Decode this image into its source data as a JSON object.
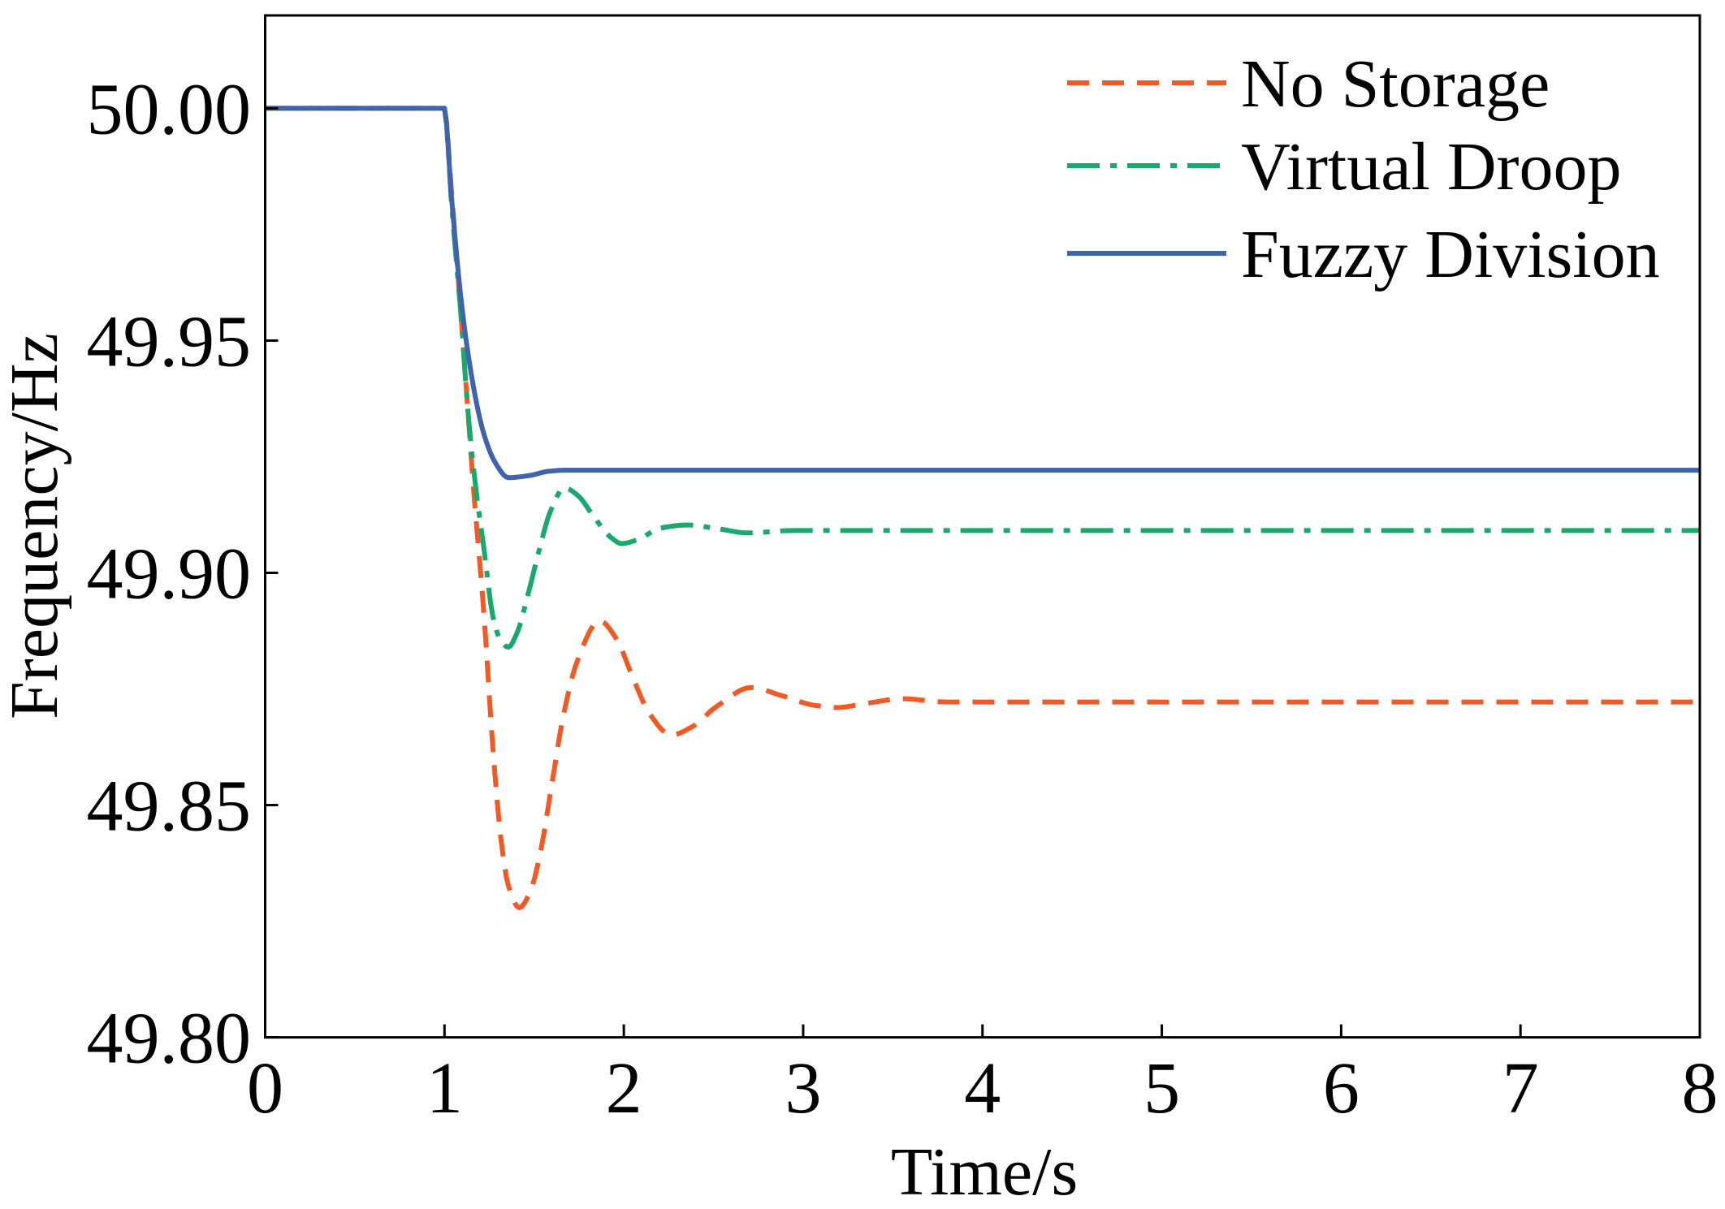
{
  "chart_data": {
    "type": "line",
    "xlabel": "Time/s",
    "ylabel": "Frequency/Hz",
    "xlim": [
      0,
      8
    ],
    "ylim": [
      49.8,
      50.02
    ],
    "xticks": [
      0,
      1,
      2,
      3,
      4,
      5,
      6,
      7,
      8
    ],
    "xtick_labels": [
      "0",
      "1",
      "2",
      "3",
      "4",
      "5",
      "6",
      "7",
      "8"
    ],
    "yticks": [
      49.8,
      49.85,
      49.9,
      49.95,
      50.0
    ],
    "ytick_labels": [
      "49.80",
      "49.85",
      "49.90",
      "49.95",
      "50.00"
    ],
    "grid": false,
    "legend": "top-right",
    "series": [
      {
        "name": "No Storage",
        "color": "#f15a24",
        "dash": "dashed",
        "x": [
          0,
          1.0,
          1.037,
          1.098,
          1.129,
          1.16,
          1.221,
          1.27,
          1.313,
          1.356,
          1.417,
          1.479,
          1.54,
          1.601,
          1.663,
          1.742,
          1.865,
          1.957,
          2.049,
          2.141,
          2.264,
          2.387,
          2.509,
          2.712,
          2.877,
          3.061,
          3.184,
          3.368,
          3.552,
          3.798,
          8
        ],
        "y": [
          50.0,
          50.0,
          49.983,
          49.9522,
          49.9356,
          49.9191,
          49.8906,
          49.8622,
          49.8433,
          49.8327,
          49.8279,
          49.8315,
          49.8409,
          49.8551,
          49.8693,
          49.8812,
          49.8897,
          49.8859,
          49.8776,
          49.8698,
          49.8651,
          49.867,
          49.871,
          49.8753,
          49.8736,
          49.8715,
          49.871,
          49.872,
          49.8729,
          49.8722,
          49.8722
        ]
      },
      {
        "name": "Virtual Droop",
        "color": "#19a86e",
        "dash": "dash-dot",
        "x": [
          0,
          1.0,
          1.037,
          1.098,
          1.129,
          1.172,
          1.221,
          1.27,
          1.313,
          1.356,
          1.405,
          1.466,
          1.528,
          1.589,
          1.669,
          1.742,
          1.834,
          1.926,
          1.988,
          2.08,
          2.202,
          2.356,
          2.509,
          2.693,
          2.939,
          8
        ],
        "y": [
          50.0,
          50.0,
          49.9806,
          49.9522,
          49.9356,
          49.9191,
          49.9049,
          49.8906,
          49.8854,
          49.884,
          49.8871,
          49.8954,
          49.9049,
          49.9131,
          49.9183,
          49.9167,
          49.912,
          49.9077,
          49.9063,
          49.9072,
          49.9096,
          49.9103,
          49.9096,
          49.9086,
          49.9091,
          49.9091
        ]
      },
      {
        "name": "Fuzzy Division",
        "color": "#4063ad",
        "dash": "solid",
        "x": [
          0,
          1.0,
          1.037,
          1.098,
          1.16,
          1.221,
          1.282,
          1.356,
          1.466,
          1.589,
          1.681,
          8
        ],
        "y": [
          50.0,
          50.0,
          49.9818,
          49.9569,
          49.9404,
          49.9297,
          49.9238,
          49.9205,
          49.9209,
          49.9219,
          49.9221,
          49.9221
        ]
      }
    ]
  }
}
